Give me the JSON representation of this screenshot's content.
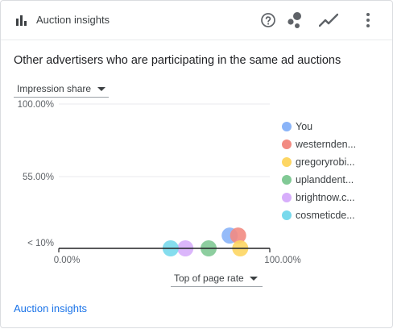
{
  "header": {
    "title": "Auction insights",
    "icons": [
      "bar-chart-icon",
      "help-icon",
      "scatter-chart-icon",
      "line-chart-icon",
      "more-vert-icon"
    ]
  },
  "subtitle": "Other advertisers who are participating in the same ad auctions",
  "y_metric_select": {
    "value": "Impression share"
  },
  "x_metric_select": {
    "value": "Top of page rate"
  },
  "footer_link": "Auction insights",
  "colors": {
    "accent": "#1a73e8",
    "You": "#8ab4f8",
    "westernden": "#f28b82",
    "gregoryrobi": "#fdd663",
    "uplanddent": "#81c995",
    "brightnow": "#d7aefb",
    "cosmeticde": "#78d9ec"
  },
  "chart_data": {
    "type": "scatter",
    "y_tick_labels": [
      "100.00%",
      "55.00%",
      "< 10%"
    ],
    "x_tick_labels": [
      "0.00%",
      "100.00%"
    ],
    "xlim": [
      0,
      100
    ],
    "ylim": [
      10,
      100
    ],
    "legend_placement": "right",
    "series": [
      {
        "name": "You",
        "color": "#8ab4f8",
        "x": 81,
        "y": 18
      },
      {
        "name": "westernden...",
        "color": "#f28b82",
        "x": 85,
        "y": 18
      },
      {
        "name": "gregoryrobi...",
        "color": "#fdd663",
        "x": 86,
        "y": 10
      },
      {
        "name": "uplanddent...",
        "color": "#81c995",
        "x": 71,
        "y": 10
      },
      {
        "name": "brightnow.c...",
        "color": "#d7aefb",
        "x": 60,
        "y": 10
      },
      {
        "name": "cosmeticde...",
        "color": "#78d9ec",
        "x": 53,
        "y": 10
      }
    ]
  }
}
